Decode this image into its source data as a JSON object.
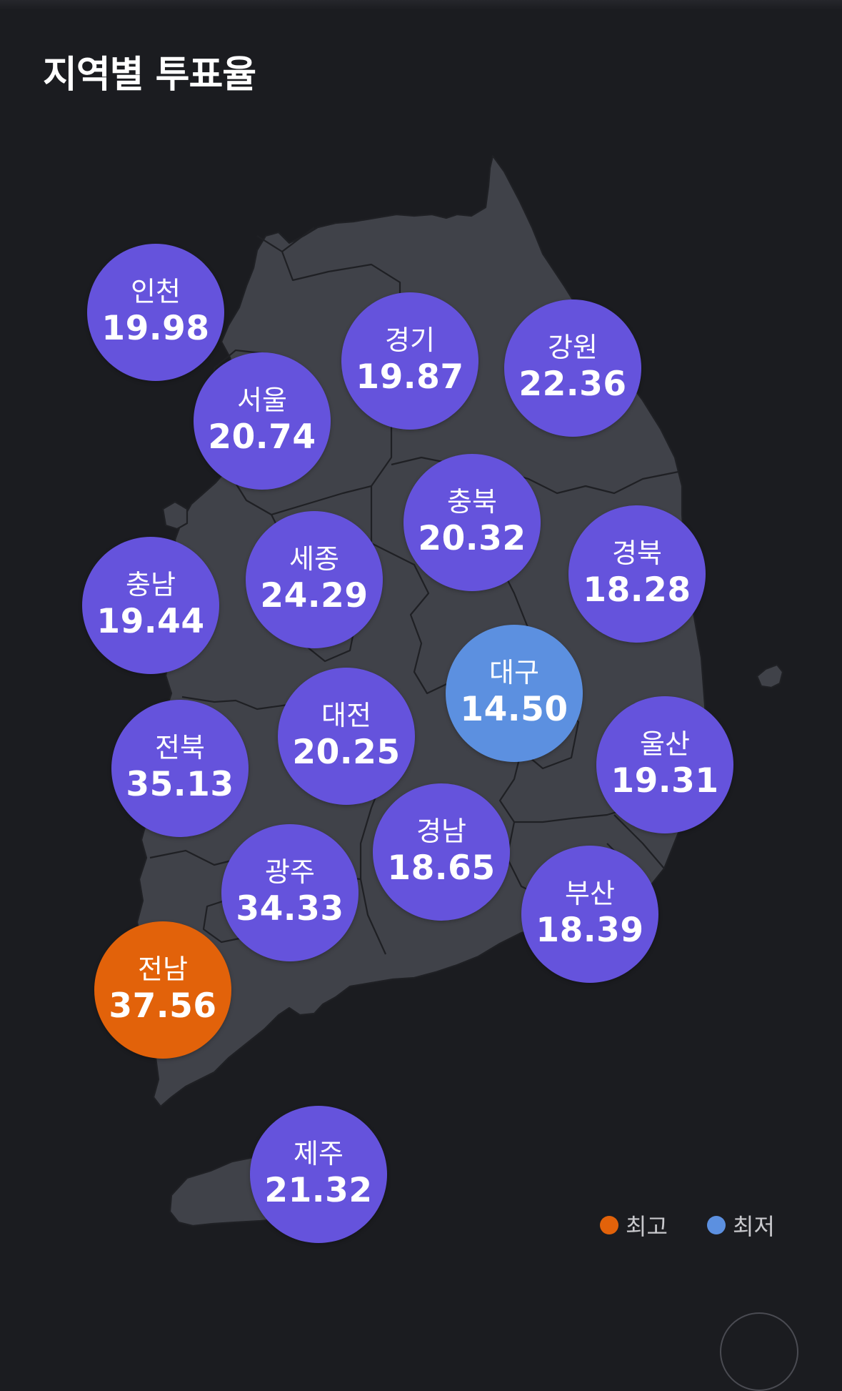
{
  "title": "지역별 투표율",
  "colors": {
    "background": "#1b1c20",
    "land": "#404249",
    "border": "#1f2024",
    "bubble_default": "#6553dc",
    "bubble_highest": "#e2620a",
    "bubble_lowest": "#5c90e0"
  },
  "regions": [
    {
      "name": "인천",
      "value": "19.98",
      "status": "normal"
    },
    {
      "name": "경기",
      "value": "19.87",
      "status": "normal"
    },
    {
      "name": "강원",
      "value": "22.36",
      "status": "normal"
    },
    {
      "name": "서울",
      "value": "20.74",
      "status": "normal"
    },
    {
      "name": "충북",
      "value": "20.32",
      "status": "normal"
    },
    {
      "name": "세종",
      "value": "24.29",
      "status": "normal"
    },
    {
      "name": "경북",
      "value": "18.28",
      "status": "normal"
    },
    {
      "name": "충남",
      "value": "19.44",
      "status": "normal"
    },
    {
      "name": "대구",
      "value": "14.50",
      "status": "lowest"
    },
    {
      "name": "대전",
      "value": "20.25",
      "status": "normal"
    },
    {
      "name": "전북",
      "value": "35.13",
      "status": "normal"
    },
    {
      "name": "울산",
      "value": "19.31",
      "status": "normal"
    },
    {
      "name": "경남",
      "value": "18.65",
      "status": "normal"
    },
    {
      "name": "광주",
      "value": "34.33",
      "status": "normal"
    },
    {
      "name": "부산",
      "value": "18.39",
      "status": "normal"
    },
    {
      "name": "전남",
      "value": "37.56",
      "status": "highest"
    },
    {
      "name": "제주",
      "value": "21.32",
      "status": "normal"
    }
  ],
  "legend": {
    "highest_label": "최고",
    "lowest_label": "최저"
  }
}
